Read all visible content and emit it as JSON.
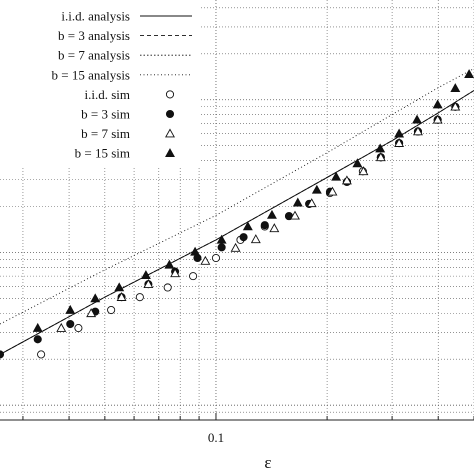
{
  "chart_data": {
    "type": "line",
    "x_scale": "log",
    "y_scale": "log",
    "xlabel": "ε",
    "ylabel": "",
    "title": "",
    "x_ticks": [
      {
        "value": 0.1,
        "label": "0.1"
      }
    ],
    "xlim": [
      0.026,
      0.5
    ],
    "ylim": [
      0.0008,
      0.45
    ],
    "grid": true,
    "legend_position": "top-left",
    "series": [
      {
        "name": "i.i.d. analysis",
        "kind": "analysis",
        "style": "solid",
        "x": [
          0.026,
          0.05,
          0.1,
          0.2,
          0.3,
          0.4,
          0.5
        ],
        "y": [
          0.00215,
          0.0051,
          0.0121,
          0.031,
          0.054,
          0.082,
          0.115
        ]
      },
      {
        "name": "b = 3 analysis",
        "kind": "analysis",
        "style": "dashed",
        "x": [
          0.026,
          0.05,
          0.1,
          0.2,
          0.3,
          0.4,
          0.5
        ],
        "y": [
          0.00215,
          0.0051,
          0.0121,
          0.031,
          0.054,
          0.082,
          0.115
        ]
      },
      {
        "name": "b = 7 analysis",
        "kind": "analysis",
        "style": "dotted",
        "x": [
          0.026,
          0.05,
          0.1,
          0.2,
          0.3,
          0.4,
          0.5
        ],
        "y": [
          0.00215,
          0.0051,
          0.0121,
          0.031,
          0.054,
          0.082,
          0.115
        ]
      },
      {
        "name": "b = 15 analysis",
        "kind": "analysis",
        "style": "dashdot",
        "x": [
          0.026,
          0.05,
          0.1,
          0.2,
          0.3,
          0.4,
          0.5
        ],
        "y": [
          0.0034,
          0.0077,
          0.0175,
          0.045,
          0.08,
          0.12,
          0.16
        ]
      },
      {
        "name": "i.i.d. sim",
        "kind": "sim",
        "marker": "open-circle",
        "x": [
          0.0336,
          0.0424,
          0.052,
          0.0622,
          0.074,
          0.0867,
          0.1,
          0.1165,
          0.1356,
          0.1577,
          0.1789,
          0.2036,
          0.2263,
          0.25,
          0.2796,
          0.3134,
          0.3525,
          0.3986,
          0.445
        ],
        "y": [
          0.00215,
          0.0032,
          0.0042,
          0.0051,
          0.0059,
          0.007,
          0.0092,
          0.0121,
          0.0148,
          0.0173,
          0.0208,
          0.0245,
          0.029,
          0.034,
          0.042,
          0.052,
          0.062,
          0.074,
          0.09
        ]
      },
      {
        "name": "b = 3 sim",
        "kind": "sim",
        "marker": "filled-circle",
        "x": [
          0.026,
          0.0329,
          0.0403,
          0.0471,
          0.0555,
          0.0656,
          0.0775,
          0.0891,
          0.1036,
          0.1188,
          0.1356,
          0.1577,
          0.1789,
          0.2036,
          0.2263,
          0.2796,
          0.3134,
          0.3525,
          0.3986,
          0.445
        ],
        "y": [
          0.00215,
          0.0027,
          0.0034,
          0.0041,
          0.0051,
          0.0062,
          0.0075,
          0.0092,
          0.0108,
          0.0126,
          0.0151,
          0.0173,
          0.0208,
          0.025,
          0.029,
          0.042,
          0.052,
          0.062,
          0.074,
          0.09
        ]
      },
      {
        "name": "b = 7 sim",
        "kind": "sim",
        "marker": "open-triangle",
        "x": [
          0.0381,
          0.0459,
          0.0555,
          0.0656,
          0.0775,
          0.0936,
          0.113,
          0.1282,
          0.1439,
          0.1637,
          0.1817,
          0.2068,
          0.2263,
          0.2509,
          0.2796,
          0.3134,
          0.3525,
          0.3986,
          0.445
        ],
        "y": [
          0.0032,
          0.004,
          0.0051,
          0.0062,
          0.0073,
          0.0088,
          0.0107,
          0.0122,
          0.0144,
          0.0174,
          0.021,
          0.025,
          0.0296,
          0.034,
          0.042,
          0.052,
          0.062,
          0.074,
          0.09
        ]
      },
      {
        "name": "b = 15 sim",
        "kind": "sim",
        "marker": "filled-triangle",
        "x": [
          0.0329,
          0.0403,
          0.0471,
          0.0547,
          0.0646,
          0.0748,
          0.0878,
          0.1036,
          0.122,
          0.1418,
          0.1666,
          0.1876,
          0.2116,
          0.2416,
          0.2785,
          0.3134,
          0.3505,
          0.3986,
          0.445,
          0.485
        ],
        "y": [
          0.0032,
          0.0042,
          0.005,
          0.0059,
          0.0071,
          0.0083,
          0.0101,
          0.0121,
          0.0148,
          0.0176,
          0.0212,
          0.0257,
          0.0313,
          0.0383,
          0.0479,
          0.06,
          0.074,
          0.093,
          0.119,
          0.147
        ]
      }
    ]
  }
}
